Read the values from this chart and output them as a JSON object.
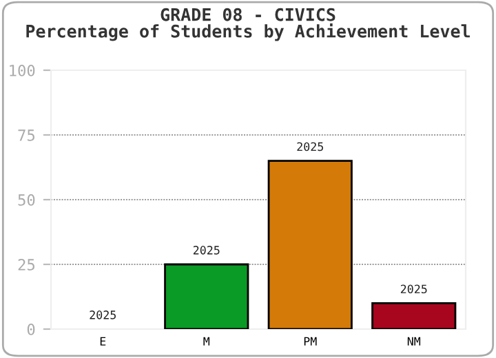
{
  "chart_data": {
    "type": "bar",
    "title": "GRADE 08 - CIVICS",
    "subtitle": "Percentage of Students by Achievement Level",
    "categories": [
      "E",
      "M",
      "PM",
      "NM"
    ],
    "series": [
      {
        "name": "2025",
        "values": [
          0,
          25,
          65,
          10
        ],
        "colors": [
          null,
          "#0a9a26",
          "#d47a08",
          "#a8061e"
        ]
      }
    ],
    "ylim": [
      0,
      100
    ],
    "yticks": [
      0,
      25,
      50,
      75,
      100
    ],
    "grid": "y"
  }
}
